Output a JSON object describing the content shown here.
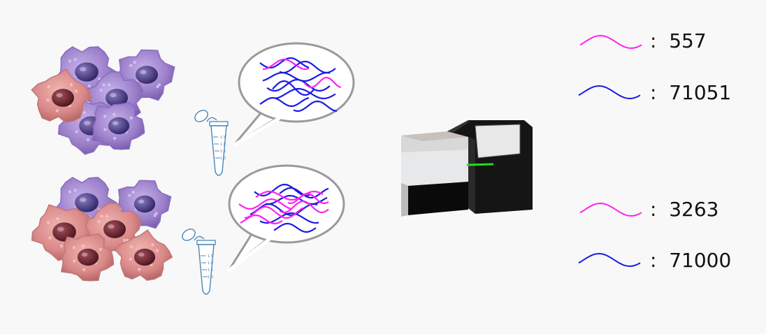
{
  "colors": {
    "magenta_read": "#ff22ee",
    "blue_read": "#1a1ae6",
    "cell_purple": "#9b7fc9",
    "cell_pink": "#d98888",
    "tube_outline": "#4a86b8",
    "bubble_outline": "#9a9a9a",
    "sequencer_body": "#111111",
    "status_led": "#22dd22",
    "background": "#f8f8f8"
  },
  "icons": {
    "cells": "cell-cluster-icon",
    "tube": "microcentrifuge-tube-icon",
    "bubble": "speech-bubble-icon",
    "machine": "sequencer-machine-icon",
    "read_legend": "wavy-read-icon"
  },
  "tube_markings": [
    "1.5",
    "1.0",
    "1.5",
    "1.0"
  ],
  "samples": [
    {
      "label_magenta": ":  557",
      "label_blue": ":  71051",
      "count_magenta": 557,
      "count_blue": 71051
    },
    {
      "label_magenta": ":  3263",
      "label_blue": ":  71000",
      "count_magenta": 3263,
      "count_blue": 71000
    }
  ]
}
